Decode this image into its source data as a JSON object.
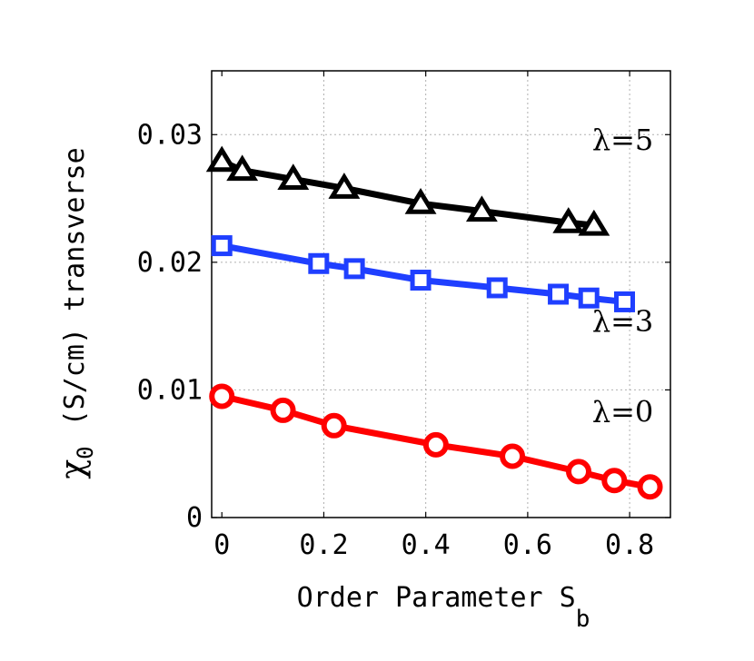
{
  "chart_data": {
    "type": "line",
    "xlabel": {
      "main": "Order Parameter S",
      "sub": "b"
    },
    "ylabel": {
      "symbol": "χ",
      "symbol_sub": "0",
      "rest": "(S/cm)  transverse"
    },
    "xlim": [
      -0.02,
      0.88
    ],
    "ylim": [
      0,
      0.035
    ],
    "xticks": [
      0,
      0.2,
      0.4,
      0.6,
      0.8
    ],
    "xtick_labels": [
      "0",
      "0.2",
      "0.4",
      "0.6",
      "0.8"
    ],
    "yticks": [
      0,
      0.01,
      0.02,
      0.03
    ],
    "ytick_labels": [
      "0",
      "0.01",
      "0.02",
      "0.03"
    ],
    "grid": true,
    "series": [
      {
        "name": "λ=5",
        "color": "#000000",
        "marker": "triangle",
        "x": [
          0.0,
          0.04,
          0.14,
          0.24,
          0.39,
          0.51,
          0.68,
          0.73
        ],
        "y": [
          0.0279,
          0.0272,
          0.0265,
          0.0258,
          0.0246,
          0.024,
          0.0231,
          0.0229
        ]
      },
      {
        "name": "λ=3",
        "color": "#1f3fff",
        "marker": "square",
        "x": [
          0.0,
          0.19,
          0.26,
          0.39,
          0.54,
          0.66,
          0.72,
          0.79
        ],
        "y": [
          0.0213,
          0.0199,
          0.0195,
          0.0186,
          0.018,
          0.0175,
          0.0172,
          0.0169
        ]
      },
      {
        "name": "λ=0",
        "color": "#ff0000",
        "marker": "circle",
        "x": [
          0.0,
          0.12,
          0.22,
          0.42,
          0.57,
          0.7,
          0.77,
          0.84
        ],
        "y": [
          0.0095,
          0.0084,
          0.0072,
          0.0057,
          0.0048,
          0.0036,
          0.0029,
          0.0024
        ]
      }
    ],
    "annotations": [
      {
        "text": "λ=5",
        "x": 0.73,
        "y": 0.0288
      },
      {
        "text": "λ=3",
        "x": 0.73,
        "y": 0.0146
      },
      {
        "text": "λ=0",
        "x": 0.73,
        "y": 0.0075
      }
    ]
  }
}
